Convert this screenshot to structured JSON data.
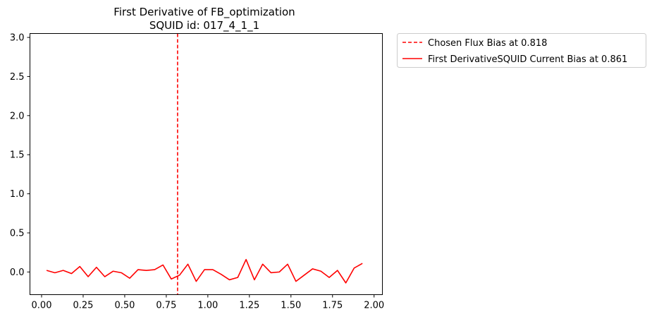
{
  "chart_data": {
    "type": "line",
    "title": "First Derivative of FB_optimization",
    "subtitle": "SQUID id: 017_4_1_1",
    "xlabel": "",
    "ylabel": "",
    "xlim": [
      -0.07,
      2.05
    ],
    "ylim": [
      -0.29,
      3.05
    ],
    "xticks": [
      0.0,
      0.25,
      0.5,
      0.75,
      1.0,
      1.25,
      1.5,
      1.75,
      2.0
    ],
    "xtick_labels": [
      "0.00",
      "0.25",
      "0.50",
      "0.75",
      "1.00",
      "1.25",
      "1.50",
      "1.75",
      "2.00"
    ],
    "yticks": [
      0.0,
      0.5,
      1.0,
      1.5,
      2.0,
      2.5,
      3.0
    ],
    "ytick_labels": [
      "0.0",
      "0.5",
      "1.0",
      "1.5",
      "2.0",
      "2.5",
      "3.0"
    ],
    "grid": false,
    "legend_placement": "outside-top-right",
    "vline": {
      "name": "Chosen Flux Bias at 0.818",
      "x": 0.818,
      "color": "#ff0000",
      "style": "dashed"
    },
    "series": [
      {
        "name": "First DerivativeSQUID Current Bias at 0.861",
        "color": "#ff0000",
        "style": "solid",
        "x": [
          0.03,
          0.08,
          0.13,
          0.18,
          0.23,
          0.28,
          0.33,
          0.38,
          0.43,
          0.48,
          0.53,
          0.58,
          0.63,
          0.68,
          0.73,
          0.78,
          0.83,
          0.88,
          0.93,
          0.98,
          1.03,
          1.08,
          1.13,
          1.18,
          1.23,
          1.28,
          1.33,
          1.38,
          1.43,
          1.48,
          1.53,
          1.58,
          1.63,
          1.68,
          1.73,
          1.78,
          1.83,
          1.88,
          1.93
        ],
        "y": [
          0.02,
          -0.01,
          0.02,
          -0.02,
          0.07,
          -0.06,
          0.06,
          -0.06,
          0.01,
          -0.01,
          -0.08,
          0.03,
          0.02,
          0.03,
          0.09,
          -0.09,
          -0.04,
          0.1,
          -0.12,
          0.03,
          0.03,
          -0.03,
          -0.1,
          -0.07,
          0.16,
          -0.1,
          0.1,
          -0.01,
          0.0,
          0.1,
          -0.12,
          -0.04,
          0.04,
          0.01,
          -0.07,
          0.02,
          -0.14,
          0.05,
          0.11
        ]
      }
    ]
  }
}
